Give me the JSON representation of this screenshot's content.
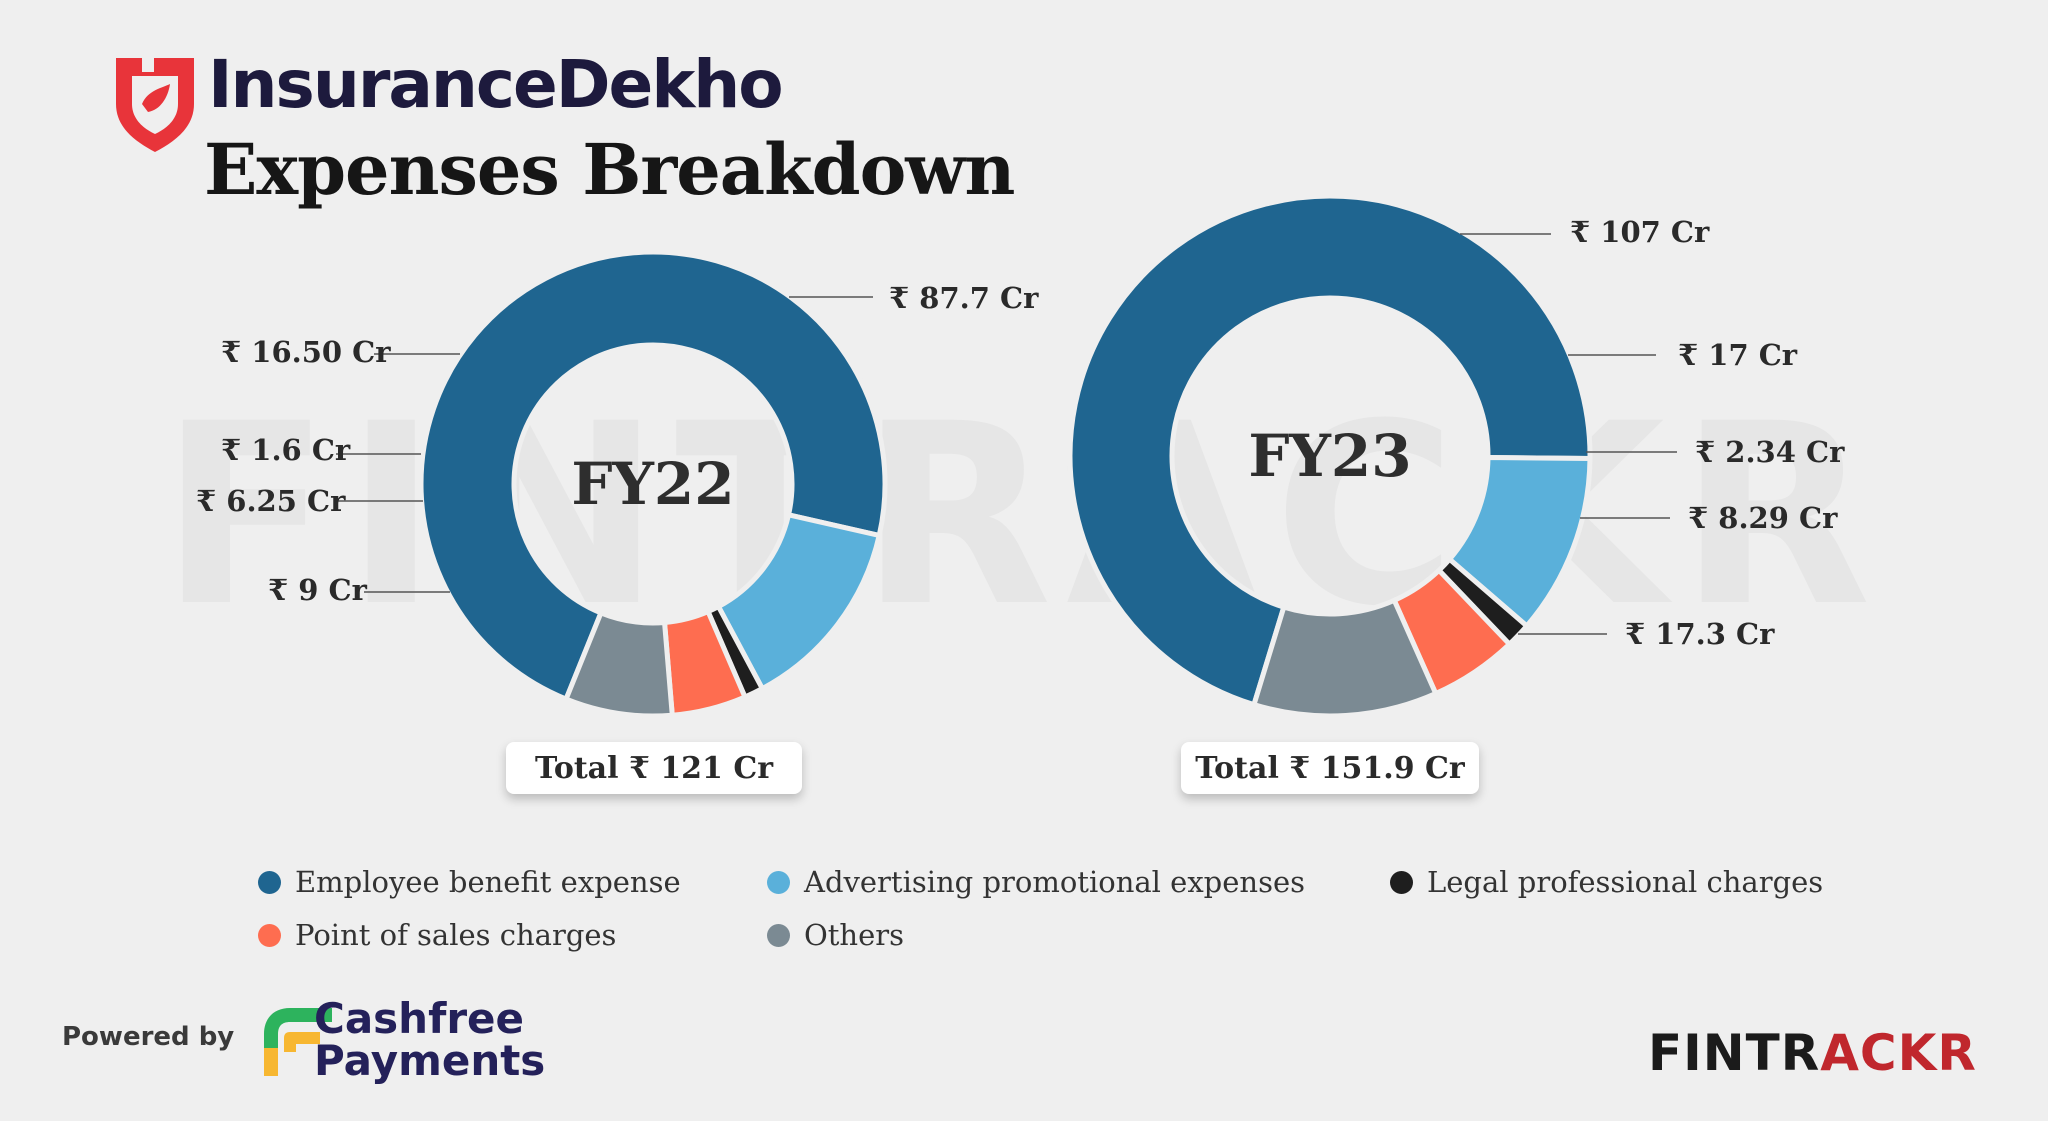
{
  "header": {
    "brand_name": "InsuranceDekho",
    "title": "Expenses Breakdown"
  },
  "watermark": "FINTRACKR",
  "colors": {
    "employee": "#1f6590",
    "advertising": "#5ab0da",
    "legal": "#1e1e1e",
    "pos": "#fe6d50",
    "others": "#7b8a93",
    "brand_red": "#e8343a",
    "cashfree_navy": "#24215a",
    "fintrackr_red": "#c0272d",
    "fintrackr_dark": "#1b1b1b"
  },
  "chart_data": [
    {
      "type": "pie",
      "center_label": "FY22",
      "total_label": "Total ₹ 121 Cr",
      "categories": [
        "Employee benefit expense",
        "Advertising promotional expenses",
        "Legal professional charges",
        "Point of sales charges",
        "Others"
      ],
      "values": [
        87.7,
        16.5,
        1.6,
        6.25,
        9
      ],
      "data_labels": [
        "₹ 87.7 Cr",
        "₹ 16.50 Cr",
        "₹ 1.6 Cr",
        "₹ 6.25 Cr",
        "₹ 9 Cr"
      ]
    },
    {
      "type": "pie",
      "center_label": "FY23",
      "total_label": "Total ₹ 151.9 Cr",
      "categories": [
        "Employee benefit expense",
        "Advertising promotional expenses",
        "Legal professional charges",
        "Point of sales charges",
        "Others"
      ],
      "values": [
        107,
        17,
        2.34,
        8.29,
        17.3
      ],
      "data_labels": [
        "₹ 107 Cr",
        "₹ 17 Cr",
        "₹ 2.34 Cr",
        "₹ 8.29 Cr",
        "₹ 17.3 Cr"
      ]
    }
  ],
  "legend": {
    "items": [
      {
        "label": "Employee benefit expense",
        "color": "#1f6590"
      },
      {
        "label": "Advertising promotional expenses",
        "color": "#5ab0da"
      },
      {
        "label": "Legal professional charges",
        "color": "#1e1e1e"
      },
      {
        "label": "Point of sales charges",
        "color": "#fe6d50"
      },
      {
        "label": "Others",
        "color": "#7b8a93"
      }
    ]
  },
  "footer": {
    "powered_by": "Powered by",
    "cashfree_line1": "Cashfree",
    "cashfree_line2": "Payments",
    "fintrackr_part1": "FINTR",
    "fintrackr_part2": "A",
    "fintrackr_part3": "CKR"
  }
}
